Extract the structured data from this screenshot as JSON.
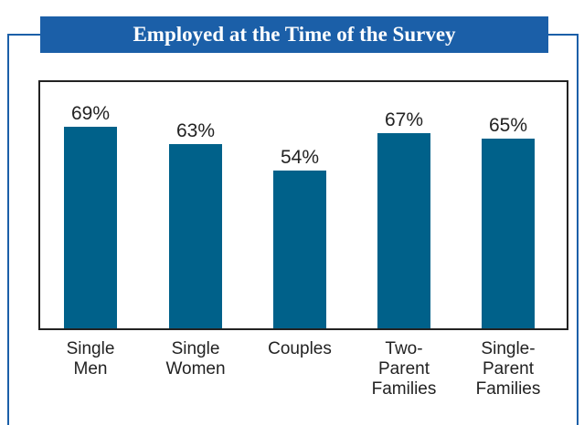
{
  "chart_data": {
    "type": "bar",
    "title": "Employed at the Time of the Survey",
    "categories": [
      "Single Men",
      "Single Women",
      "Couples",
      "Two-Parent Families",
      "Single-Parent Families"
    ],
    "values": [
      69,
      63,
      54,
      67,
      65
    ],
    "value_labels": [
      "69%",
      "63%",
      "54%",
      "67%",
      "65%"
    ],
    "color": "#00618a"
  }
}
